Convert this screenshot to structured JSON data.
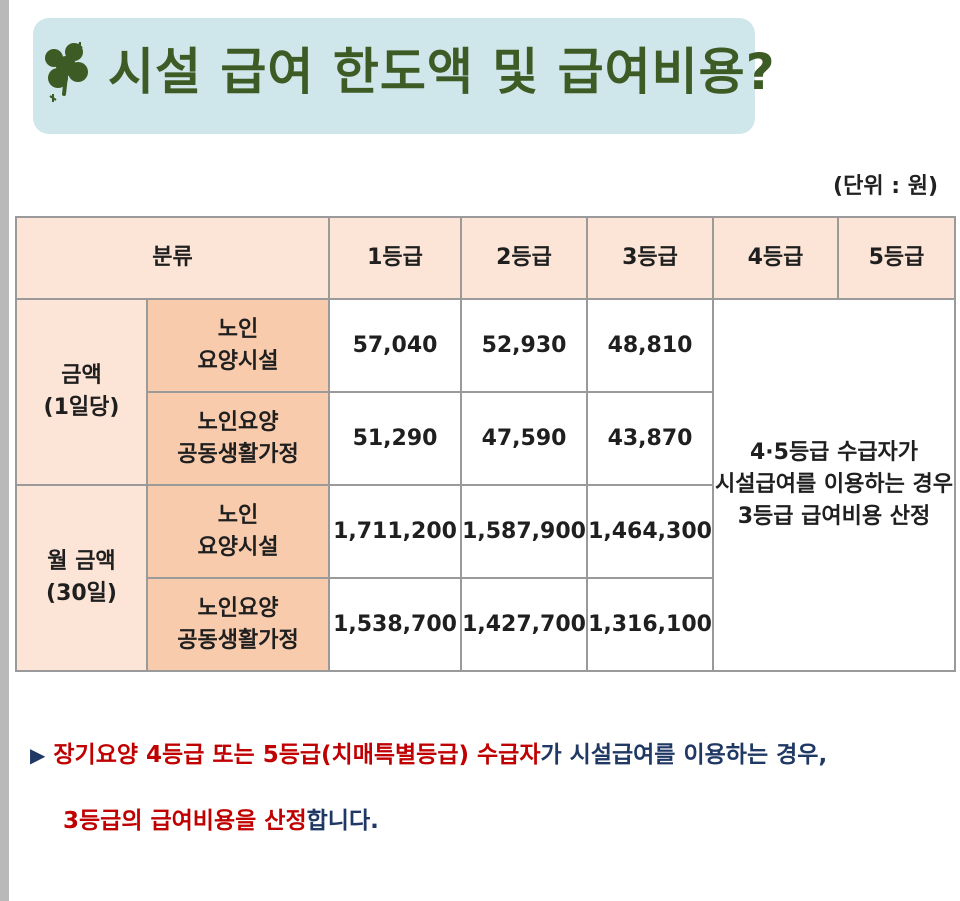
{
  "title": {
    "text": "시설 급여 한도액 및 급여비용?",
    "icon": "clover-icon"
  },
  "unit": "(단위 : 원)",
  "table": {
    "headers": [
      "분류",
      "1등급",
      "2등급",
      "3등급",
      "4등급",
      "5등급"
    ],
    "groups": [
      {
        "label": "금액\n(1일당)",
        "rows": [
          {
            "type": "노인\n요양시설",
            "values": [
              "57,040",
              "52,930",
              "48,810"
            ]
          },
          {
            "type": "노인요양\n공동생활가정",
            "values": [
              "51,290",
              "47,590",
              "43,870"
            ]
          }
        ]
      },
      {
        "label": "월 금액\n(30일)",
        "rows": [
          {
            "type": "노인\n요양시설",
            "values": [
              "1,711,200",
              "1,587,900",
              "1,464,300"
            ]
          },
          {
            "type": "노인요양\n공동생활가정",
            "values": [
              "1,538,700",
              "1,427,700",
              "1,316,100"
            ]
          }
        ]
      }
    ],
    "note": "4·5등급 수급자가\n시설급여를 이용하는 경우\n3등급 급여비용 산정"
  },
  "footer": {
    "bullet_icon": "triangle-right-icon",
    "line1": [
      {
        "text": "장기요양 4등급 또는 5등급(치매특별등급) 수급자",
        "color": "#c00000"
      },
      {
        "text": "가 시설급여를 이용하는 경우,",
        "color": "#1f3864"
      }
    ],
    "line2": [
      {
        "text": "3등급의 급여비용을 산정",
        "color": "#c00000"
      },
      {
        "text": "합니다.",
        "color": "#1f3864"
      }
    ]
  },
  "colors": {
    "title_bg": "#cfe6ea",
    "title_text": "#3d5b24",
    "header_bg": "#fce4d6",
    "subheader_bg": "#f8cbad",
    "emphasis_red": "#c00000",
    "emphasis_navy": "#1f3864"
  }
}
